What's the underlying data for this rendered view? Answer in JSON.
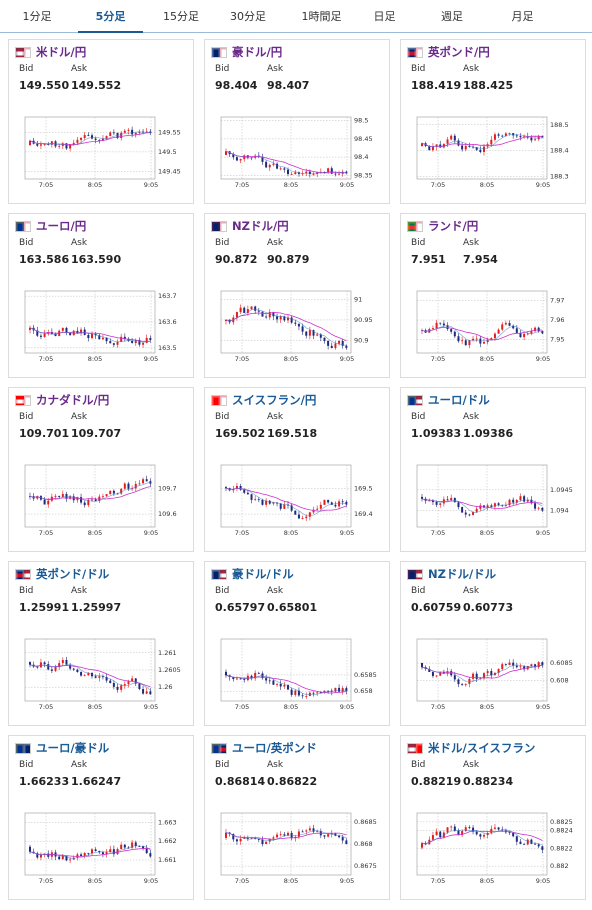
{
  "tabs": [
    {
      "label": "1分足"
    },
    {
      "label": "5分足"
    },
    {
      "label": "15分足"
    },
    {
      "label": "30分足"
    },
    {
      "label": "1時間足"
    },
    {
      "label": "日足"
    },
    {
      "label": "週足"
    },
    {
      "label": "月足"
    }
  ],
  "active_tab": 1,
  "bid_label": "Bid",
  "ask_label": "Ask",
  "colors": {
    "up": "#e02020",
    "down": "#1f2a7a",
    "ma_long": "#cc33cc",
    "ma_short": "#3377cc",
    "title": "#1a5a96",
    "title_yen": "#6a2a8a",
    "accent": "#1a5a96"
  },
  "pairs": [
    {
      "name": "米ドル/円",
      "bid": "149.550",
      "ask": "149.552",
      "flag": [
        "us",
        "jp"
      ],
      "title_color": "yen",
      "xticks": [
        "7:05",
        "8:05",
        "9:05"
      ],
      "yticks": [
        {
          "label": "149.55",
          "v": 149.55
        },
        {
          "label": "149.5",
          "v": 149.5
        },
        {
          "label": "149.45",
          "v": 149.45
        }
      ],
      "ylim": [
        149.43,
        149.59
      ]
    },
    {
      "name": "豪ドル/円",
      "bid": "98.404",
      "ask": "98.407",
      "flag": [
        "au",
        "jp"
      ],
      "title_color": "yen",
      "xticks": [
        "7:05",
        "8:05",
        "9:05"
      ],
      "yticks": [
        {
          "label": "98.5",
          "v": 98.5
        },
        {
          "label": "98.45",
          "v": 98.45
        },
        {
          "label": "98.4",
          "v": 98.4
        },
        {
          "label": "98.35",
          "v": 98.35
        }
      ],
      "ylim": [
        98.34,
        98.51
      ]
    },
    {
      "name": "英ポンド/円",
      "bid": "188.419",
      "ask": "188.425",
      "flag": [
        "uk",
        "jp"
      ],
      "title_color": "yen",
      "xticks": [
        "7:05",
        "8:05",
        "9:05"
      ],
      "yticks": [
        {
          "label": "188.5",
          "v": 188.5
        },
        {
          "label": "188.4",
          "v": 188.4
        },
        {
          "label": "188.3",
          "v": 188.3
        }
      ],
      "ylim": [
        188.29,
        188.53
      ]
    },
    {
      "name": "ユーロ/円",
      "bid": "163.586",
      "ask": "163.590",
      "flag": [
        "eu",
        "jp"
      ],
      "title_color": "yen",
      "xticks": [
        "7:05",
        "8:05",
        "9:05"
      ],
      "yticks": [
        {
          "label": "163.7",
          "v": 163.7
        },
        {
          "label": "163.6",
          "v": 163.6
        },
        {
          "label": "163.5",
          "v": 163.5
        }
      ],
      "ylim": [
        163.48,
        163.72
      ]
    },
    {
      "name": "NZドル/円",
      "bid": "90.872",
      "ask": "90.879",
      "flag": [
        "nz",
        "jp"
      ],
      "title_color": "yen",
      "xticks": [
        "7:05",
        "8:05",
        "9:05"
      ],
      "yticks": [
        {
          "label": "91",
          "v": 91.0
        },
        {
          "label": "90.95",
          "v": 90.95
        },
        {
          "label": "90.9",
          "v": 90.9
        }
      ],
      "ylim": [
        90.87,
        91.02
      ]
    },
    {
      "name": "ランド/円",
      "bid": "7.951",
      "ask": "7.954",
      "flag": [
        "za",
        "jp"
      ],
      "title_color": "yen",
      "xticks": [
        "7:05",
        "8:05",
        "9:05"
      ],
      "yticks": [
        {
          "label": "7.97",
          "v": 7.97
        },
        {
          "label": "7.96",
          "v": 7.96
        },
        {
          "label": "7.95",
          "v": 7.95
        }
      ],
      "ylim": [
        7.943,
        7.975
      ]
    },
    {
      "name": "カナダドル/円",
      "bid": "109.701",
      "ask": "109.707",
      "flag": [
        "ca",
        "jp"
      ],
      "title_color": "yen",
      "xticks": [
        "7:05",
        "8:05",
        "9:05"
      ],
      "yticks": [
        {
          "label": "109.7",
          "v": 109.7
        },
        {
          "label": "109.6",
          "v": 109.6
        }
      ],
      "ylim": [
        109.55,
        109.79
      ]
    },
    {
      "name": "スイスフラン/円",
      "bid": "169.502",
      "ask": "169.518",
      "flag": [
        "ch",
        "jp"
      ],
      "title_color": "blue",
      "xticks": [
        "7:05",
        "8:05",
        "9:05"
      ],
      "yticks": [
        {
          "label": "169.5",
          "v": 169.5
        },
        {
          "label": "169.4",
          "v": 169.4
        }
      ],
      "ylim": [
        169.35,
        169.59
      ]
    },
    {
      "name": "ユーロ/ドル",
      "bid": "1.09383",
      "ask": "1.09386",
      "flag": [
        "eu",
        "us"
      ],
      "title_color": "blue",
      "xticks": [
        "7:05",
        "8:05",
        "9:05"
      ],
      "yticks": [
        {
          "label": "1.0945",
          "v": 1.0945
        },
        {
          "label": "1.094",
          "v": 1.094
        }
      ],
      "ylim": [
        1.0936,
        1.0951
      ]
    },
    {
      "name": "英ポンド/ドル",
      "bid": "1.25991",
      "ask": "1.25997",
      "flag": [
        "uk",
        "us"
      ],
      "title_color": "blue",
      "xticks": [
        "7:05",
        "8:05",
        "9:05"
      ],
      "yticks": [
        {
          "label": "1.261",
          "v": 1.261
        },
        {
          "label": "1.2605",
          "v": 1.2605
        },
        {
          "label": "1.26",
          "v": 1.26
        }
      ],
      "ylim": [
        1.2596,
        1.2614
      ]
    },
    {
      "name": "豪ドル/ドル",
      "bid": "0.65797",
      "ask": "0.65801",
      "flag": [
        "au",
        "us"
      ],
      "title_color": "blue",
      "xticks": [
        "7:05",
        "8:05",
        "9:05"
      ],
      "yticks": [
        {
          "label": "0.6585",
          "v": 0.6585
        },
        {
          "label": "0.658",
          "v": 0.658
        }
      ],
      "ylim": [
        0.6577,
        0.6596
      ]
    },
    {
      "name": "NZドル/ドル",
      "bid": "0.60759",
      "ask": "0.60773",
      "flag": [
        "nz",
        "us"
      ],
      "title_color": "blue",
      "xticks": [
        "7:05",
        "8:05",
        "9:05"
      ],
      "yticks": [
        {
          "label": "0.6085",
          "v": 0.6085
        },
        {
          "label": "0.608",
          "v": 0.608
        }
      ],
      "ylim": [
        0.6074,
        0.6092
      ]
    },
    {
      "name": "ユーロ/豪ドル",
      "bid": "1.66233",
      "ask": "1.66247",
      "flag": [
        "eu",
        "au"
      ],
      "title_color": "blue",
      "xticks": [
        "7:05",
        "8:05",
        "9:05"
      ],
      "yticks": [
        {
          "label": "1.663",
          "v": 1.663
        },
        {
          "label": "1.662",
          "v": 1.662
        },
        {
          "label": "1.661",
          "v": 1.661
        }
      ],
      "ylim": [
        1.6602,
        1.6635
      ]
    },
    {
      "name": "ユーロ/英ポンド",
      "bid": "0.86814",
      "ask": "0.86822",
      "flag": [
        "eu",
        "uk"
      ],
      "title_color": "blue",
      "xticks": [
        "7:05",
        "8:05",
        "9:05"
      ],
      "yticks": [
        {
          "label": "0.8685",
          "v": 0.8685
        },
        {
          "label": "0.868",
          "v": 0.868
        },
        {
          "label": "0.8675",
          "v": 0.8675
        }
      ],
      "ylim": [
        0.8673,
        0.8687
      ]
    },
    {
      "name": "米ドル/スイスフラン",
      "bid": "0.88219",
      "ask": "0.88234",
      "flag": [
        "us",
        "ch"
      ],
      "title_color": "blue",
      "xticks": [
        "7:05",
        "8:05",
        "9:05"
      ],
      "yticks": [
        {
          "label": "0.8825",
          "v": 0.8825
        },
        {
          "label": "0.8824",
          "v": 0.8824
        },
        {
          "label": "0.8822",
          "v": 0.8822
        },
        {
          "label": "0.882",
          "v": 0.882
        }
      ],
      "ylim": [
        0.8819,
        0.8826
      ]
    }
  ]
}
